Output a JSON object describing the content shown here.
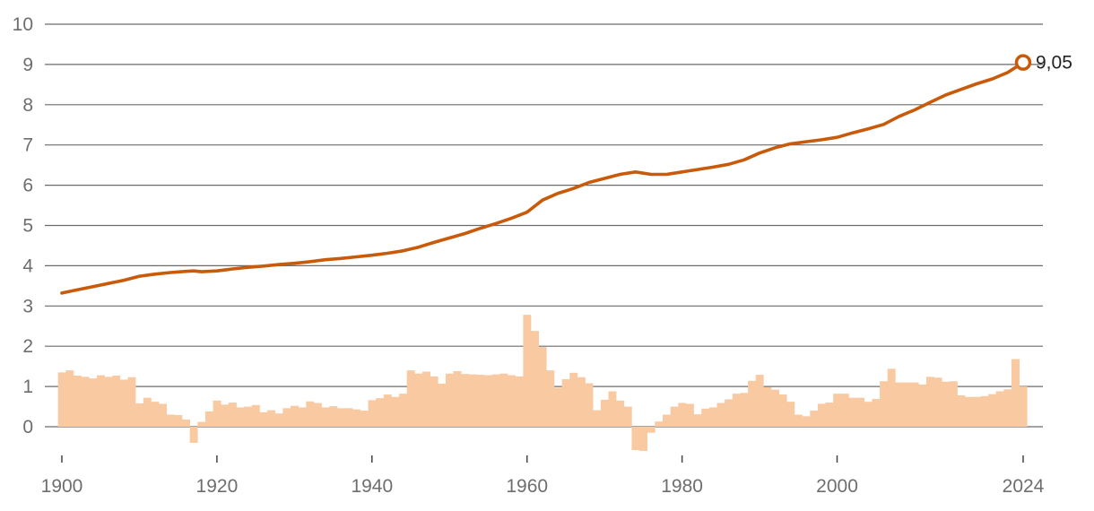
{
  "chart_data": {
    "type": "line",
    "colors": {
      "line": "#c85a0a",
      "bars": "#f9c9a1",
      "grid": "#6b6b6b"
    },
    "ylim": [
      -0.6,
      10
    ],
    "y_ticks": [
      "0",
      "1",
      "2",
      "3",
      "4",
      "5",
      "6",
      "7",
      "8",
      "9",
      "10"
    ],
    "xlim": [
      1900,
      2024
    ],
    "x_ticks": [
      "1900",
      "1920",
      "1940",
      "1960",
      "1980",
      "2000",
      "2024"
    ],
    "end_label": "9,05",
    "series": [
      {
        "style": "line",
        "points": [
          [
            1900,
            3.32
          ],
          [
            1902,
            3.4
          ],
          [
            1904,
            3.48
          ],
          [
            1906,
            3.56
          ],
          [
            1908,
            3.64
          ],
          [
            1910,
            3.74
          ],
          [
            1912,
            3.79
          ],
          [
            1914,
            3.83
          ],
          [
            1916,
            3.86
          ],
          [
            1917,
            3.87
          ],
          [
            1918,
            3.85
          ],
          [
            1920,
            3.87
          ],
          [
            1922,
            3.92
          ],
          [
            1924,
            3.96
          ],
          [
            1926,
            3.99
          ],
          [
            1928,
            4.03
          ],
          [
            1930,
            4.06
          ],
          [
            1932,
            4.1
          ],
          [
            1934,
            4.15
          ],
          [
            1936,
            4.18
          ],
          [
            1938,
            4.22
          ],
          [
            1940,
            4.26
          ],
          [
            1942,
            4.31
          ],
          [
            1944,
            4.37
          ],
          [
            1946,
            4.46
          ],
          [
            1948,
            4.58
          ],
          [
            1950,
            4.69
          ],
          [
            1952,
            4.8
          ],
          [
            1954,
            4.93
          ],
          [
            1956,
            5.05
          ],
          [
            1958,
            5.18
          ],
          [
            1960,
            5.33
          ],
          [
            1962,
            5.63
          ],
          [
            1964,
            5.8
          ],
          [
            1966,
            5.92
          ],
          [
            1968,
            6.07
          ],
          [
            1970,
            6.17
          ],
          [
            1972,
            6.27
          ],
          [
            1974,
            6.33
          ],
          [
            1976,
            6.27
          ],
          [
            1978,
            6.27
          ],
          [
            1980,
            6.33
          ],
          [
            1982,
            6.39
          ],
          [
            1984,
            6.45
          ],
          [
            1986,
            6.52
          ],
          [
            1988,
            6.63
          ],
          [
            1990,
            6.8
          ],
          [
            1992,
            6.93
          ],
          [
            1994,
            7.03
          ],
          [
            1996,
            7.08
          ],
          [
            1998,
            7.13
          ],
          [
            2000,
            7.19
          ],
          [
            2002,
            7.3
          ],
          [
            2004,
            7.4
          ],
          [
            2006,
            7.51
          ],
          [
            2008,
            7.71
          ],
          [
            2010,
            7.87
          ],
          [
            2012,
            8.06
          ],
          [
            2014,
            8.24
          ],
          [
            2016,
            8.38
          ],
          [
            2018,
            8.52
          ],
          [
            2020,
            8.64
          ],
          [
            2022,
            8.8
          ],
          [
            2024,
            9.05
          ]
        ]
      },
      {
        "style": "bar",
        "x": [
          1900,
          1901,
          1902,
          1903,
          1904,
          1905,
          1906,
          1907,
          1908,
          1909,
          1910,
          1911,
          1912,
          1913,
          1914,
          1915,
          1916,
          1917,
          1918,
          1919,
          1920,
          1921,
          1922,
          1923,
          1924,
          1925,
          1926,
          1927,
          1928,
          1929,
          1930,
          1931,
          1932,
          1933,
          1934,
          1935,
          1936,
          1937,
          1938,
          1939,
          1940,
          1941,
          1942,
          1943,
          1944,
          1945,
          1946,
          1947,
          1948,
          1949,
          1950,
          1951,
          1952,
          1953,
          1954,
          1955,
          1956,
          1957,
          1958,
          1959,
          1960,
          1961,
          1962,
          1963,
          1964,
          1965,
          1966,
          1967,
          1968,
          1969,
          1970,
          1971,
          1972,
          1973,
          1974,
          1975,
          1976,
          1977,
          1978,
          1979,
          1980,
          1981,
          1982,
          1983,
          1984,
          1985,
          1986,
          1987,
          1988,
          1989,
          1990,
          1991,
          1992,
          1993,
          1994,
          1995,
          1996,
          1997,
          1998,
          1999,
          2000,
          2001,
          2002,
          2003,
          2004,
          2005,
          2006,
          2007,
          2008,
          2009,
          2010,
          2011,
          2012,
          2013,
          2014,
          2015,
          2016,
          2017,
          2018,
          2019,
          2020,
          2021,
          2022,
          2023,
          2024
        ],
        "values": [
          1.35,
          1.4,
          1.27,
          1.24,
          1.2,
          1.28,
          1.24,
          1.27,
          1.17,
          1.23,
          0.58,
          0.72,
          0.62,
          0.57,
          0.3,
          0.29,
          0.18,
          -0.4,
          0.12,
          0.38,
          0.65,
          0.55,
          0.6,
          0.48,
          0.5,
          0.54,
          0.36,
          0.41,
          0.33,
          0.46,
          0.52,
          0.48,
          0.63,
          0.59,
          0.48,
          0.51,
          0.46,
          0.46,
          0.43,
          0.4,
          0.66,
          0.71,
          0.8,
          0.74,
          0.82,
          1.4,
          1.32,
          1.37,
          1.25,
          1.07,
          1.32,
          1.38,
          1.31,
          1.3,
          1.29,
          1.28,
          1.3,
          1.32,
          1.28,
          1.25,
          2.78,
          2.38,
          1.98,
          1.4,
          0.97,
          1.18,
          1.34,
          1.23,
          1.08,
          0.41,
          0.67,
          0.88,
          0.65,
          0.5,
          -0.58,
          -0.6,
          -0.15,
          0.13,
          0.3,
          0.5,
          0.59,
          0.57,
          0.31,
          0.45,
          0.48,
          0.59,
          0.68,
          0.82,
          0.84,
          1.14,
          1.29,
          0.98,
          0.92,
          0.8,
          0.62,
          0.3,
          0.26,
          0.4,
          0.57,
          0.6,
          0.82,
          0.82,
          0.72,
          0.72,
          0.62,
          0.69,
          1.13,
          1.44,
          1.1,
          1.1,
          1.1,
          1.05,
          1.24,
          1.22,
          1.12,
          1.13,
          0.78,
          0.74,
          0.74,
          0.76,
          0.81,
          0.88,
          0.93,
          1.68,
          1.0
        ]
      }
    ]
  }
}
